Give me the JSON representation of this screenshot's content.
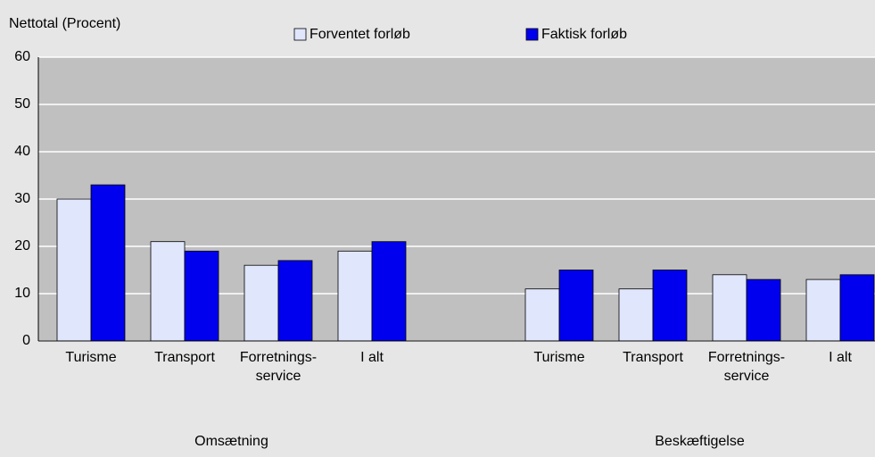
{
  "chart_data": {
    "type": "bar",
    "ylabel": "Nettotal (Procent)",
    "categories": [
      "Turisme",
      "Transport",
      "Forretnings-\nservice",
      "I alt",
      null,
      "Turisme",
      "Transport",
      "Forretnings-\nservice",
      "I alt"
    ],
    "groups": [
      "Omsætning",
      "Beskæftigelse"
    ],
    "series": [
      {
        "name": "Forventet forløb",
        "color": "#e0e6fc",
        "values": [
          30,
          21,
          16,
          19,
          null,
          11,
          11,
          14,
          13
        ]
      },
      {
        "name": "Faktisk forløb",
        "color": "#0000ee",
        "values": [
          33,
          19,
          17,
          21,
          null,
          15,
          15,
          13,
          14
        ]
      }
    ],
    "ylim": [
      0,
      60
    ],
    "yticks": [
      0,
      10,
      20,
      30,
      40,
      50,
      60
    ],
    "grid": true
  }
}
